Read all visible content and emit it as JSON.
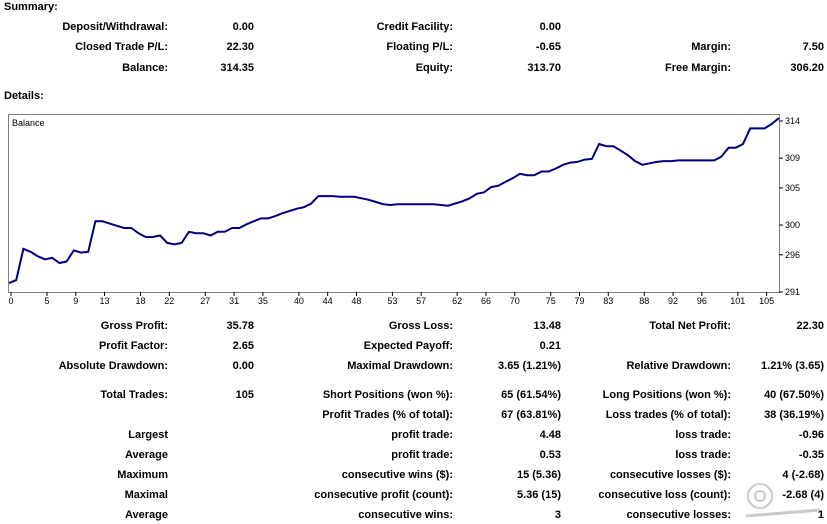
{
  "summary": {
    "title": "Summary:",
    "deposit_withdrawal": {
      "label": "Deposit/Withdrawal:",
      "value": "0.00"
    },
    "credit_facility": {
      "label": "Credit Facility:",
      "value": "0.00"
    },
    "closed_trade_pl": {
      "label": "Closed Trade P/L:",
      "value": "22.30"
    },
    "floating_pl": {
      "label": "Floating P/L:",
      "value": "-0.65"
    },
    "margin": {
      "label": "Margin:",
      "value": "7.50"
    },
    "balance": {
      "label": "Balance:",
      "value": "314.35"
    },
    "equity": {
      "label": "Equity:",
      "value": "313.70"
    },
    "free_margin": {
      "label": "Free Margin:",
      "value": "306.20"
    }
  },
  "details": {
    "title": "Details:"
  },
  "chart_data": {
    "type": "line",
    "title": "Balance",
    "series": [
      {
        "values": [
          [
            0,
            292.2
          ],
          [
            1,
            292.6
          ],
          [
            2,
            296.8
          ],
          [
            3,
            296.4
          ],
          [
            4,
            295.8
          ],
          [
            5,
            295.4
          ],
          [
            6,
            295.6
          ],
          [
            7,
            294.9
          ],
          [
            8,
            295.1
          ],
          [
            9,
            296.6
          ],
          [
            10,
            296.3
          ],
          [
            11,
            296.4
          ],
          [
            12,
            300.5
          ],
          [
            13,
            300.5
          ],
          [
            14,
            300.2
          ],
          [
            15,
            299.9
          ],
          [
            16,
            299.6
          ],
          [
            17,
            299.6
          ],
          [
            18,
            298.9
          ],
          [
            19,
            298.4
          ],
          [
            20,
            298.4
          ],
          [
            21,
            298.6
          ],
          [
            22,
            297.6
          ],
          [
            23,
            297.4
          ],
          [
            24,
            297.6
          ],
          [
            25,
            299.1
          ],
          [
            26,
            298.9
          ],
          [
            27,
            298.9
          ],
          [
            28,
            298.6
          ],
          [
            29,
            299.1
          ],
          [
            30,
            299.1
          ],
          [
            31,
            299.6
          ],
          [
            32,
            299.6
          ],
          [
            33,
            300.1
          ],
          [
            34,
            300.5
          ],
          [
            35,
            300.9
          ],
          [
            36,
            300.9
          ],
          [
            37,
            301.2
          ],
          [
            38,
            301.6
          ],
          [
            39,
            301.9
          ],
          [
            40,
            302.2
          ],
          [
            41,
            302.4
          ],
          [
            42,
            302.9
          ],
          [
            43,
            303.9
          ],
          [
            44,
            303.9
          ],
          [
            45,
            303.9
          ],
          [
            46,
            303.8
          ],
          [
            47,
            303.8
          ],
          [
            48,
            303.8
          ],
          [
            49,
            303.6
          ],
          [
            50,
            303.4
          ],
          [
            51,
            303.1
          ],
          [
            52,
            302.8
          ],
          [
            53,
            302.7
          ],
          [
            54,
            302.8
          ],
          [
            55,
            302.8
          ],
          [
            56,
            302.8
          ],
          [
            57,
            302.8
          ],
          [
            58,
            302.8
          ],
          [
            59,
            302.8
          ],
          [
            60,
            302.7
          ],
          [
            61,
            302.6
          ],
          [
            62,
            302.9
          ],
          [
            63,
            303.2
          ],
          [
            64,
            303.6
          ],
          [
            65,
            304.2
          ],
          [
            66,
            304.4
          ],
          [
            67,
            305.1
          ],
          [
            68,
            305.3
          ],
          [
            69,
            305.8
          ],
          [
            70,
            306.3
          ],
          [
            71,
            306.9
          ],
          [
            72,
            306.7
          ],
          [
            73,
            306.7
          ],
          [
            74,
            307.2
          ],
          [
            75,
            307.2
          ],
          [
            76,
            307.6
          ],
          [
            77,
            308.1
          ],
          [
            78,
            308.4
          ],
          [
            79,
            308.5
          ],
          [
            80,
            308.8
          ],
          [
            81,
            308.9
          ],
          [
            82,
            310.9
          ],
          [
            83,
            310.6
          ],
          [
            84,
            310.6
          ],
          [
            85,
            310.0
          ],
          [
            86,
            309.4
          ],
          [
            87,
            308.6
          ],
          [
            88,
            308.1
          ],
          [
            89,
            308.3
          ],
          [
            90,
            308.5
          ],
          [
            91,
            308.6
          ],
          [
            92,
            308.6
          ],
          [
            93,
            308.7
          ],
          [
            94,
            308.7
          ],
          [
            95,
            308.7
          ],
          [
            96,
            308.7
          ],
          [
            97,
            308.7
          ],
          [
            98,
            308.7
          ],
          [
            99,
            309.2
          ],
          [
            100,
            310.4
          ],
          [
            101,
            310.4
          ],
          [
            102,
            310.9
          ],
          [
            103,
            313.0
          ],
          [
            104,
            313.0
          ],
          [
            105,
            313.0
          ],
          [
            106,
            313.6
          ],
          [
            107,
            314.4
          ]
        ]
      }
    ],
    "x_ticks": [
      "0",
      "5",
      "9",
      "13",
      "18",
      "22",
      "27",
      "31",
      "35",
      "40",
      "44",
      "48",
      "53",
      "57",
      "62",
      "66",
      "70",
      "75",
      "79",
      "83",
      "88",
      "92",
      "96",
      "101",
      "105"
    ],
    "y_ticks": [
      "314",
      "309",
      "305",
      "300",
      "296",
      "291"
    ],
    "ylim": [
      291,
      314.8
    ],
    "xlim": [
      0,
      107
    ],
    "color": "#000080"
  },
  "stats": {
    "gross_profit": {
      "label": "Gross Profit:",
      "value": "35.78"
    },
    "gross_loss": {
      "label": "Gross Loss:",
      "value": "13.48"
    },
    "total_net_profit": {
      "label": "Total Net Profit:",
      "value": "22.30"
    },
    "profit_factor": {
      "label": "Profit Factor:",
      "value": "2.65"
    },
    "expected_payoff": {
      "label": "Expected Payoff:",
      "value": "0.21"
    },
    "absolute_drawdown": {
      "label": "Absolute Drawdown:",
      "value": "0.00"
    },
    "maximal_drawdown": {
      "label": "Maximal Drawdown:",
      "value": "3.65 (1.21%)"
    },
    "relative_drawdown": {
      "label": "Relative Drawdown:",
      "value": "1.21% (3.65)"
    },
    "total_trades": {
      "label": "Total Trades:",
      "value": "105"
    },
    "short_positions": {
      "label": "Short Positions (won %):",
      "value": "65 (61.54%)"
    },
    "long_positions": {
      "label": "Long Positions (won %):",
      "value": "40 (67.50%)"
    },
    "profit_trades": {
      "label": "Profit Trades (% of total):",
      "value": "67 (63.81%)"
    },
    "loss_trades": {
      "label": "Loss trades (% of total):",
      "value": "38 (36.19%)"
    },
    "largest": {
      "label": "Largest",
      "profit_label": "profit trade:",
      "profit_value": "4.48",
      "loss_label": "loss trade:",
      "loss_value": "-0.96"
    },
    "average": {
      "label": "Average",
      "profit_label": "profit trade:",
      "profit_value": "0.53",
      "loss_label": "loss trade:",
      "loss_value": "-0.35"
    },
    "maximum": {
      "label": "Maximum",
      "profit_label": "consecutive wins ($):",
      "profit_value": "15 (5.36)",
      "loss_label": "consecutive losses ($):",
      "loss_value": "4 (-2.68)"
    },
    "maximal": {
      "label": "Maximal",
      "profit_label": "consecutive profit (count):",
      "profit_value": "5.36 (15)",
      "loss_label": "consecutive loss (count):",
      "loss_value": "-2.68 (4)"
    },
    "average2": {
      "label": "Average",
      "profit_label": "consecutive wins:",
      "profit_value": "3",
      "loss_label": "consecutive losses:",
      "loss_value": "1"
    }
  }
}
